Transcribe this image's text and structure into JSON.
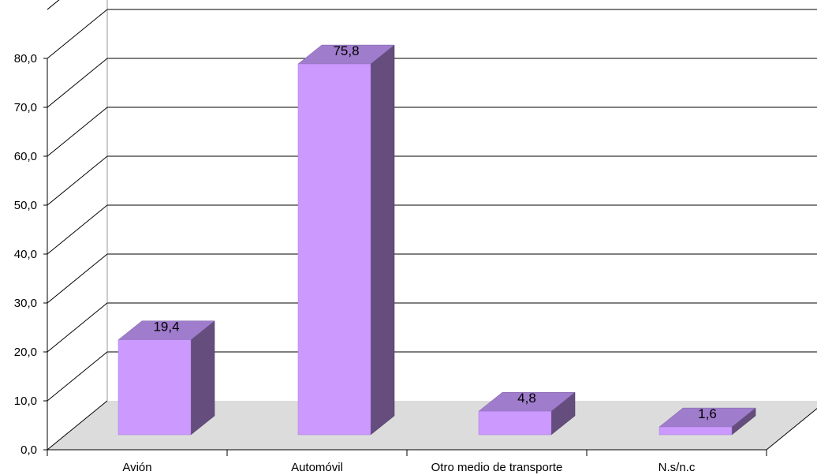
{
  "chart_data": {
    "type": "bar",
    "style": "3d",
    "categories": [
      "Avión",
      "Automóvil",
      "Otro medio de transporte",
      "N.s/n.c"
    ],
    "values": [
      19.4,
      75.8,
      4.8,
      1.6
    ],
    "data_labels": [
      "19,4",
      "75,8",
      "4,8",
      "1,6"
    ],
    "y_ticks": [
      "0,0",
      "10,0",
      "20,0",
      "30,0",
      "40,0",
      "50,0",
      "60,0",
      "70,0",
      "80,0"
    ],
    "ylim": [
      0,
      80
    ],
    "title": "",
    "xlabel": "",
    "ylabel": "",
    "grid": true,
    "legend": "none",
    "colors": {
      "bar_front": "#cc99ff",
      "bar_top": "#9f7ccc",
      "bar_side": "#654e7e",
      "floor": "#dcdcdc",
      "gridline": "#000000"
    }
  }
}
